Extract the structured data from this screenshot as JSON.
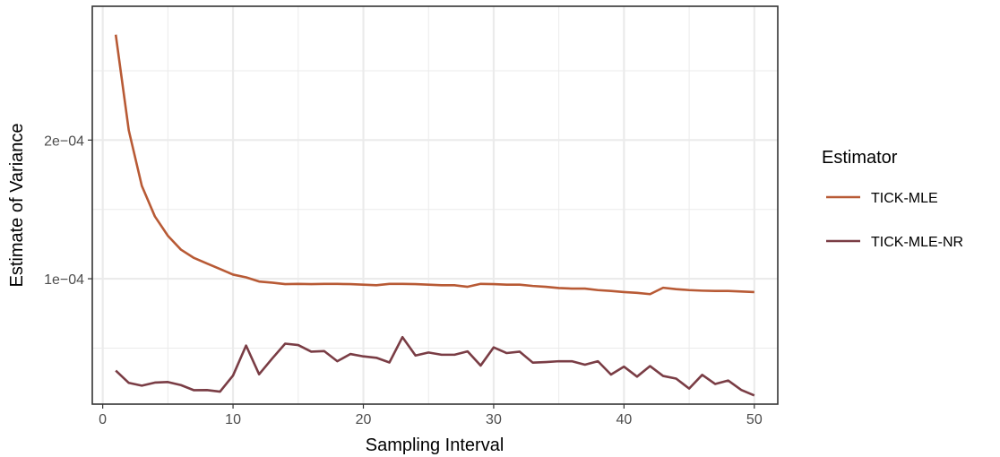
{
  "chart_data": {
    "type": "line",
    "xlabel": "Sampling Interval",
    "ylabel": "Estimate of Variance",
    "xlim": [
      -0.8,
      51.8
    ],
    "ylim": [
      9.57e-06,
      0.0002965
    ],
    "xticks": [
      0,
      10,
      20,
      30,
      40,
      50
    ],
    "xtick_labels": [
      "0",
      "10",
      "20",
      "30",
      "40",
      "50"
    ],
    "yticks": [
      0.0001,
      0.0002
    ],
    "ytick_labels": [
      "1e−04",
      "2e−04"
    ],
    "grid": true,
    "legend": {
      "title": "Estimator",
      "position": "right"
    },
    "x": [
      1,
      2,
      3,
      4,
      5,
      6,
      7,
      8,
      9,
      10,
      11,
      12,
      13,
      14,
      15,
      16,
      17,
      18,
      19,
      20,
      21,
      22,
      23,
      24,
      25,
      26,
      27,
      28,
      29,
      30,
      31,
      32,
      33,
      34,
      35,
      36,
      37,
      38,
      39,
      40,
      41,
      42,
      43,
      44,
      45,
      46,
      47,
      48,
      49,
      50
    ],
    "series": [
      {
        "name": "TICK-MLE",
        "color": "#B85A35",
        "values": [
          0.000276,
          0.000207,
          0.000167,
          0.000145,
          0.000131,
          0.000121,
          0.000115,
          0.000111,
          0.000107,
          0.000103,
          0.000101,
          9.8e-05,
          9.72e-05,
          9.61e-05,
          9.63e-05,
          9.61e-05,
          9.63e-05,
          9.63e-05,
          9.61e-05,
          9.57e-05,
          9.53e-05,
          9.63e-05,
          9.63e-05,
          9.61e-05,
          9.57e-05,
          9.53e-05,
          9.53e-05,
          9.42e-05,
          9.63e-05,
          9.61e-05,
          9.57e-05,
          9.57e-05,
          9.48e-05,
          9.42e-05,
          9.33e-05,
          9.29e-05,
          9.29e-05,
          9.18e-05,
          9.12e-05,
          9.04e-05,
          8.98e-05,
          8.89e-05,
          9.35e-05,
          9.25e-05,
          9.18e-05,
          9.14e-05,
          9.12e-05,
          9.12e-05,
          9.08e-05,
          9.04e-05
        ]
      },
      {
        "name": "TICK-MLE-NR",
        "color": "#7A3D45",
        "values": [
          3.38e-05,
          2.49e-05,
          2.29e-05,
          2.51e-05,
          2.55e-05,
          2.33e-05,
          1.96e-05,
          1.97e-05,
          1.86e-05,
          3.02e-05,
          5.18e-05,
          3.11e-05,
          4.24e-05,
          5.32e-05,
          5.22e-05,
          4.74e-05,
          4.78e-05,
          4.05e-05,
          4.57e-05,
          4.4e-05,
          4.3e-05,
          3.96e-05,
          5.79e-05,
          4.46e-05,
          4.68e-05,
          4.52e-05,
          4.52e-05,
          4.76e-05,
          3.74e-05,
          5.05e-05,
          4.64e-05,
          4.74e-05,
          3.95e-05,
          3.99e-05,
          4.05e-05,
          4.05e-05,
          3.8e-05,
          4.05e-05,
          3.09e-05,
          3.66e-05,
          2.94e-05,
          3.7e-05,
          2.99e-05,
          2.8e-05,
          2.08e-05,
          3.07e-05,
          2.41e-05,
          2.66e-05,
          1.98e-05,
          1.58e-05
        ]
      }
    ]
  }
}
